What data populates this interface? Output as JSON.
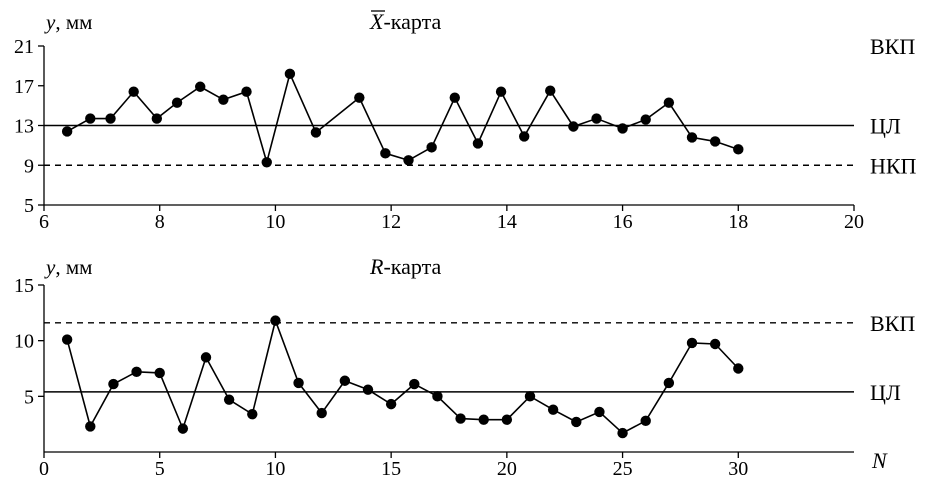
{
  "chart_data": [
    {
      "type": "line",
      "title_symbol": "X",
      "title_suffix": "-карта",
      "ylabel_var": "y",
      "ylabel_unit": ", мм",
      "xlim": [
        6,
        20
      ],
      "ylim": [
        5,
        21
      ],
      "xticks": [
        6,
        8,
        10,
        12,
        14,
        16,
        18,
        20
      ],
      "yticks": [
        5,
        9,
        13,
        17,
        21
      ],
      "grid": false,
      "control_lines": [
        {
          "label": "ВКП",
          "value": 21,
          "style": "none"
        },
        {
          "label": "ЦЛ",
          "value": 13,
          "style": "solid"
        },
        {
          "label": "НКП",
          "value": 9,
          "style": "dashed"
        }
      ],
      "series": [
        {
          "x": [
            6.4,
            6.8,
            7.15,
            7.55,
            7.95,
            8.3,
            8.7,
            9.1,
            9.5,
            9.85,
            10.25,
            10.7,
            11.45,
            11.9,
            12.3,
            12.7,
            13.1,
            13.5,
            13.9,
            14.3,
            14.75,
            15.15,
            15.55,
            16.0,
            16.4,
            16.8,
            17.2,
            17.6,
            18.0
          ],
          "y": [
            12.4,
            13.7,
            13.7,
            16.4,
            13.7,
            15.3,
            16.9,
            15.6,
            16.4,
            9.3,
            18.2,
            12.3,
            15.8,
            10.2,
            9.5,
            10.8,
            15.8,
            11.2,
            16.4,
            11.9,
            16.5,
            12.9,
            13.7,
            12.7,
            13.6,
            15.3,
            11.8,
            11.4,
            10.6
          ]
        }
      ]
    },
    {
      "type": "line",
      "title_symbol": "R",
      "title_suffix": "-карта",
      "ylabel_var": "y",
      "ylabel_unit": ", мм",
      "xlabel": "N",
      "xlim": [
        0,
        35
      ],
      "ylim": [
        0,
        15
      ],
      "xticks": [
        0,
        5,
        10,
        15,
        20,
        25,
        30
      ],
      "yticks": [
        5,
        10,
        15
      ],
      "grid": false,
      "control_lines": [
        {
          "label": "ВКП",
          "value": 11.6,
          "style": "dashed"
        },
        {
          "label": "ЦЛ",
          "value": 5.4,
          "style": "solid"
        }
      ],
      "series": [
        {
          "x": [
            1,
            2,
            3,
            4,
            5,
            6,
            7,
            8,
            9,
            10,
            11,
            12,
            13,
            14,
            15,
            16,
            17,
            18,
            19,
            20,
            21,
            22,
            23,
            24,
            25,
            26,
            27,
            28,
            29,
            30
          ],
          "y": [
            10.1,
            2.3,
            6.1,
            7.2,
            7.1,
            2.1,
            8.5,
            4.7,
            3.4,
            11.8,
            6.2,
            3.5,
            6.4,
            5.6,
            4.3,
            6.1,
            5.0,
            3.0,
            2.9,
            2.9,
            5.0,
            3.8,
            2.7,
            3.6,
            1.7,
            2.8,
            6.2,
            9.8,
            9.7,
            7.5
          ]
        }
      ]
    }
  ]
}
